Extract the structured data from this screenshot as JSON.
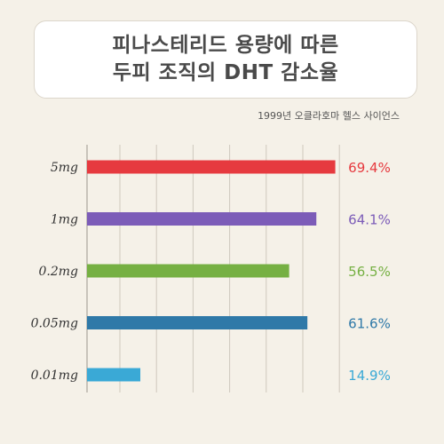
{
  "title": {
    "line1": "피나스테리드 용량에 따른",
    "line2": "두피 조직의 DHT 감소율"
  },
  "source": "1999년 오클라호마 헬스 사이언스",
  "chart_data": {
    "type": "bar",
    "orientation": "horizontal",
    "categories": [
      "5mg",
      "1mg",
      "0.2mg",
      "0.05mg",
      "0.01mg"
    ],
    "values": [
      69.4,
      64.1,
      56.5,
      61.6,
      14.9
    ],
    "value_labels": [
      "69.4%",
      "64.1%",
      "56.5%",
      "61.6%",
      "14.9%"
    ],
    "colors": [
      "#e63a3f",
      "#7c5cb8",
      "#76b043",
      "#2f79a8",
      "#3aa9d6"
    ],
    "xlim": [
      0,
      70
    ],
    "grid": "vertical"
  }
}
